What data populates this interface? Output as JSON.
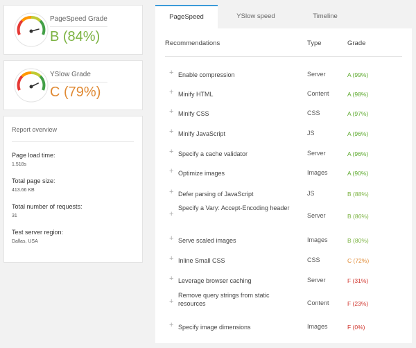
{
  "cards": {
    "pagespeed": {
      "label": "PageSpeed Grade",
      "value": "B (84%)",
      "color": "#7cb342",
      "score": 84
    },
    "yslow": {
      "label": "YSlow Grade",
      "value": "C (79%)",
      "color": "#e08a34",
      "score": 79
    }
  },
  "report": {
    "title": "Report overview",
    "stats": [
      {
        "label": "Page load time:",
        "value": "1.518s"
      },
      {
        "label": "Total page size:",
        "value": "413.66 KB"
      },
      {
        "label": "Total number of requests:",
        "value": "31"
      },
      {
        "label": "Test server region:",
        "value": "Dallas, USA"
      }
    ]
  },
  "tabs": [
    {
      "label": "PageSpeed",
      "active": true
    },
    {
      "label": "YSlow speed",
      "active": false
    },
    {
      "label": "Timeline",
      "active": false
    }
  ],
  "table": {
    "headers": {
      "recommendations": "Recommendations",
      "type": "Type",
      "grade": "Grade"
    },
    "expand_icon": "plus-icon",
    "rows": [
      {
        "name": "Enable compression",
        "type": "Server",
        "grade": "A (99%)",
        "color": "#5ba82b"
      },
      {
        "name": "Minify HTML",
        "type": "Content",
        "grade": "A (98%)",
        "color": "#5ba82b"
      },
      {
        "name": "Minify CSS",
        "type": "CSS",
        "grade": "A (97%)",
        "color": "#5ba82b"
      },
      {
        "name": "Minify JavaScript",
        "type": "JS",
        "grade": "A (96%)",
        "color": "#5ba82b"
      },
      {
        "name": "Specify a cache validator",
        "type": "Server",
        "grade": "A (96%)",
        "color": "#5ba82b"
      },
      {
        "name": "Optimize images",
        "type": "Images",
        "grade": "A (90%)",
        "color": "#5ba82b"
      },
      {
        "name": "Defer parsing of JavaScript",
        "type": "JS",
        "grade": "B (88%)",
        "color": "#7cb342"
      },
      {
        "name": "Specify a Vary: Accept-Encoding header",
        "type": "Server",
        "grade": "B (86%)",
        "color": "#7cb342"
      },
      {
        "name": "Serve scaled images",
        "type": "Images",
        "grade": "B (80%)",
        "color": "#7cb342"
      },
      {
        "name": "Inline Small CSS",
        "type": "CSS",
        "grade": "C (72%)",
        "color": "#e08a34"
      },
      {
        "name": "Leverage browser caching",
        "type": "Server",
        "grade": "F (31%)",
        "color": "#d0342c"
      },
      {
        "name": "Remove query strings from static resources",
        "type": "Content",
        "grade": "F (23%)",
        "color": "#d0342c"
      },
      {
        "name": "Specify image dimensions",
        "type": "Images",
        "grade": "F (0%)",
        "color": "#d0342c"
      }
    ]
  }
}
